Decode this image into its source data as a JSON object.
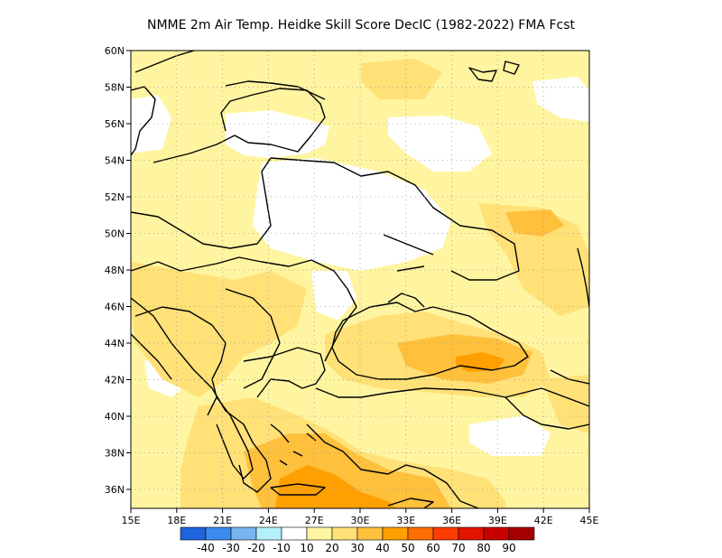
{
  "title": "NMME  2m Air Temp. Heidke Skill Score DecIC (1982-2022) FMA Fcst",
  "lat_labels": [
    "60N",
    "58N",
    "56N",
    "54N",
    "52N",
    "50N",
    "48N",
    "46N",
    "44N",
    "42N",
    "40N",
    "38N",
    "36N"
  ],
  "lon_labels": [
    "15E",
    "18E",
    "21E",
    "24E",
    "27E",
    "30E",
    "33E",
    "36E",
    "39E",
    "42E",
    "45E"
  ],
  "colorbar": {
    "labels": [
      "-40",
      "-30",
      "-20",
      "-10",
      "10",
      "20",
      "30",
      "40",
      "50",
      "60",
      "70",
      "80",
      "90"
    ],
    "colors": [
      "#1e64dc",
      "#3c8cf0",
      "#78b4f0",
      "#b4f0fa",
      "#ffffff",
      "#fff5a0",
      "#ffe178",
      "#ffc03c",
      "#ffa000",
      "#ff6e00",
      "#ff3c00",
      "#e11400",
      "#c80000",
      "#a50000"
    ]
  }
}
